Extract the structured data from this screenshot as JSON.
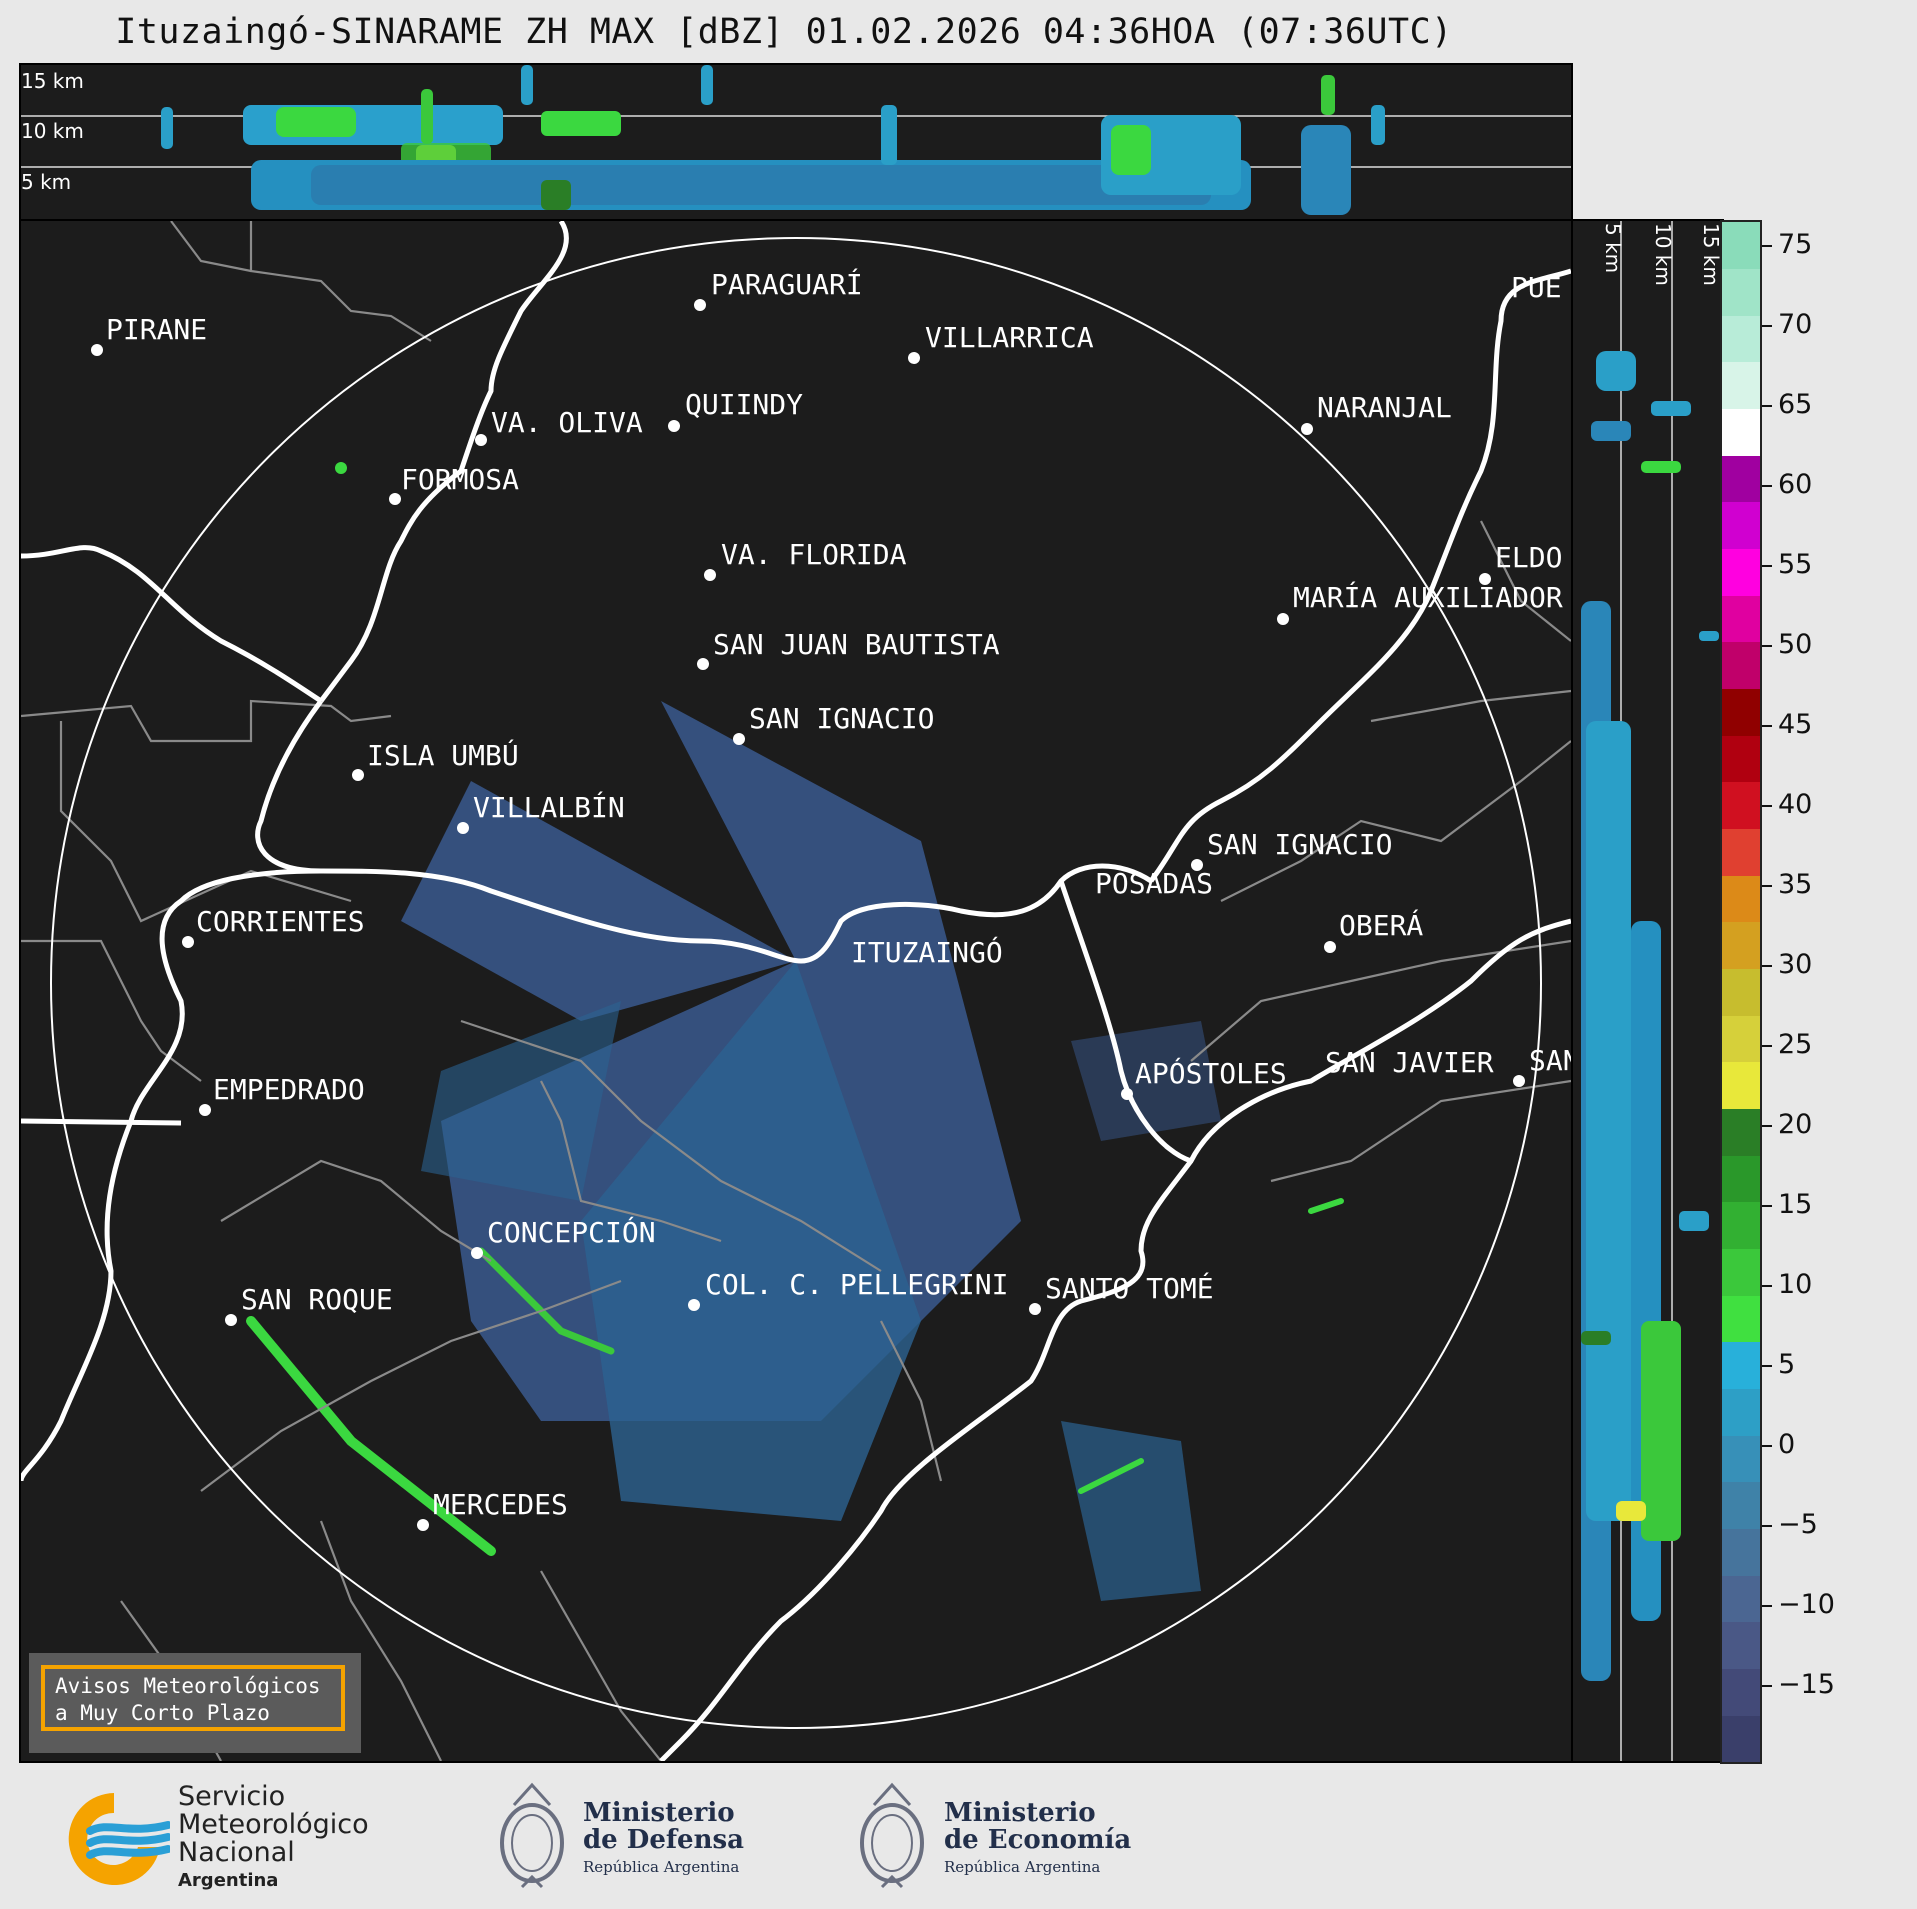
{
  "title": "Ituzaingó-SINARAME ZH MAX [dBZ] 01.02.2026 04:36HOA (07:36UTC)",
  "top_panel": {
    "height_labels": [
      "15 km",
      "10 km",
      "5 km"
    ]
  },
  "side_panel": {
    "height_labels": [
      "5 km",
      "10 km",
      "15 km"
    ]
  },
  "colorbar": {
    "ticks": [
      "75",
      "70",
      "65",
      "60",
      "55",
      "50",
      "45",
      "40",
      "35",
      "30",
      "25",
      "20",
      "15",
      "10",
      "5",
      "0",
      "−5",
      "−10",
      "−15"
    ],
    "colors": [
      "#3a3f6a",
      "#434a78",
      "#4a5886",
      "#4b6692",
      "#46749c",
      "#3f82a8",
      "#3790b8",
      "#2d9fc6",
      "#28b0da",
      "#40e040",
      "#3bc83b",
      "#32b032",
      "#2a982a",
      "#2a7e26",
      "#e8e83a",
      "#d6d03a",
      "#c7bd2e",
      "#d4a020",
      "#dc8a18",
      "#e04030",
      "#d01020",
      "#b00010",
      "#900000",
      "#c0006a",
      "#e000a0",
      "#ff00e0",
      "#d000d0",
      "#a000a0",
      "#ffffff",
      "#d8f4e8",
      "#b8ecd8",
      "#a0e4c8",
      "#8adcba"
    ]
  },
  "cities": [
    {
      "name": "PIRANE"
    },
    {
      "name": "PARAGUARÍ"
    },
    {
      "name": "VILLARRICA"
    },
    {
      "name": "VA. OLIVA"
    },
    {
      "name": "QUIINDY"
    },
    {
      "name": "NARANJAL"
    },
    {
      "name": "FORMOSA"
    },
    {
      "name": "VA. FLORIDA"
    },
    {
      "name": "ELDO"
    },
    {
      "name": "MARÍA AUXILIADOR"
    },
    {
      "name": "SAN JUAN BAUTISTA"
    },
    {
      "name": "SAN IGNACIO"
    },
    {
      "name": "ISLA UMBÚ"
    },
    {
      "name": "VILLALBÍN"
    },
    {
      "name": "SAN IGNACIO"
    },
    {
      "name": "POSADAS"
    },
    {
      "name": "CORRIENTES"
    },
    {
      "name": "ITUZAINGÓ"
    },
    {
      "name": "OBERÁ"
    },
    {
      "name": "EMPEDRADO"
    },
    {
      "name": "APÓSTOLES"
    },
    {
      "name": "SAN JAVIER"
    },
    {
      "name": "SAN"
    },
    {
      "name": "CONCEPCIÓN"
    },
    {
      "name": "SAN ROQUE"
    },
    {
      "name": "COL. C. PELLEGRINI"
    },
    {
      "name": "SANTO TOMÉ"
    },
    {
      "name": "MERCEDES"
    },
    {
      "name": "PUE"
    }
  ],
  "notice": {
    "line1": "Avisos Meteorológicos",
    "line2": "a Muy Corto Plazo"
  },
  "logos": {
    "smn": {
      "line1": "Servicio",
      "line2": "Meteorológico",
      "line3": "Nacional",
      "line4": "Argentina"
    },
    "defensa": {
      "line1": "Ministerio",
      "line2": "de Defensa",
      "line3": "República Argentina"
    },
    "economia": {
      "line1": "Ministerio",
      "line2": "de Economía",
      "line3": "República Argentina"
    }
  }
}
